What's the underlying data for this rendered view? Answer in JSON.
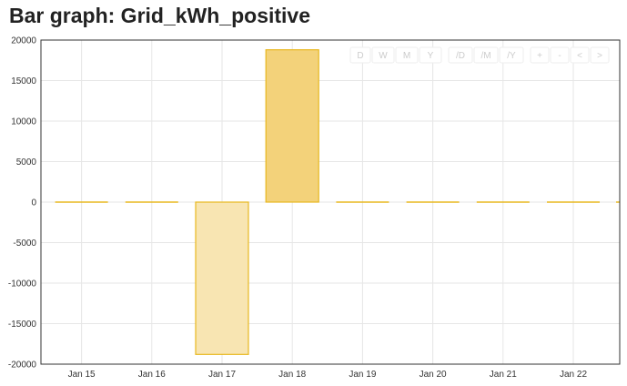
{
  "page": {
    "title": "Bar graph: Grid_kWh_positive"
  },
  "controls": [
    {
      "label": "D",
      "name": "range-day-button"
    },
    {
      "label": "W",
      "name": "range-week-button"
    },
    {
      "label": "M",
      "name": "range-month-button"
    },
    {
      "label": "Y",
      "name": "range-year-button"
    },
    {
      "label": "/D",
      "name": "per-day-button"
    },
    {
      "label": "/M",
      "name": "per-month-button"
    },
    {
      "label": "/Y",
      "name": "per-year-button"
    },
    {
      "label": "+",
      "name": "zoom-in-button"
    },
    {
      "label": "-",
      "name": "zoom-out-button"
    },
    {
      "label": "<",
      "name": "prev-button"
    },
    {
      "label": ">",
      "name": "next-button"
    }
  ],
  "chart_data": {
    "type": "bar",
    "title": "Bar graph: Grid_kWh_positive",
    "xlabel": "",
    "ylabel": "",
    "categories": [
      "Jan 15",
      "Jan 16",
      "Jan 17",
      "Jan 18",
      "Jan 19",
      "Jan 20",
      "Jan 21",
      "Jan 22"
    ],
    "values": [
      0,
      0,
      -18800,
      18800,
      0,
      0,
      0,
      0
    ],
    "ylim": [
      -20000,
      20000
    ],
    "yticks": [
      20000,
      15000,
      10000,
      5000,
      0,
      -5000,
      -10000,
      -15000,
      -20000
    ],
    "grid": true,
    "colors": {
      "positive_fill": "#f3d27a",
      "negative_fill": "#f8e5b2",
      "stroke": "#e8b820",
      "axis": "#333333",
      "grid": "#e6e6e6"
    }
  }
}
